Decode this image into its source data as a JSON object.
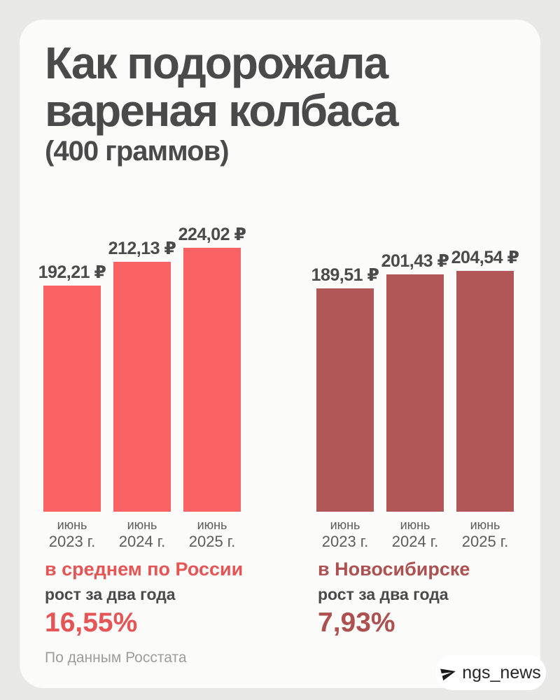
{
  "page": {
    "background_color": "#e8e8e7",
    "card_color": "#fbfbfa"
  },
  "header": {
    "title_line1": "Как подорожала",
    "title_line2": "вареная колбаса",
    "subtitle": "(400 граммов)"
  },
  "chart_data": {
    "type": "bar",
    "title": "Как подорожала вареная колбаса (400 граммов)",
    "categories": [
      {
        "month": "июнь",
        "year": "2023 г."
      },
      {
        "month": "июнь",
        "year": "2024 г."
      },
      {
        "month": "июнь",
        "year": "2025 г."
      }
    ],
    "ylim": [
      0,
      224.02
    ],
    "grid": false,
    "legend": false,
    "currency": "₽",
    "groups": [
      {
        "name": "в среднем по России",
        "bar_color": "#f96363",
        "accent_color": "#e65555",
        "values": [
          192.21,
          212.13,
          224.02
        ],
        "value_labels": [
          "192,21 ₽",
          "212,13 ₽",
          "224,02 ₽"
        ],
        "growth_label": "рост за два года",
        "growth_value": "16,55%"
      },
      {
        "name": "в Новосибирске",
        "bar_color": "#b25757",
        "accent_color": "#ac5050",
        "values": [
          189.51,
          201.43,
          204.54
        ],
        "value_labels": [
          "189,51 ₽",
          "201,43 ₽",
          "204,54 ₽"
        ],
        "growth_label": "рост за два года",
        "growth_value": "7,93%"
      }
    ]
  },
  "footer": {
    "source": "По данным Росстата",
    "badge": {
      "icon": "telegram-plane-icon",
      "channel": "ngs_news"
    }
  }
}
